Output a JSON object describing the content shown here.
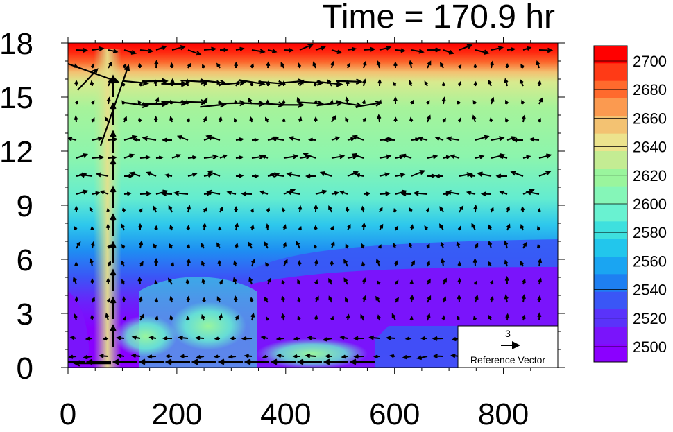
{
  "title": "Time = 170.9 hr",
  "chart_data": {
    "type": "heatmap",
    "x_ticks": [
      0,
      200,
      400,
      600,
      800
    ],
    "y_ticks": [
      0,
      3,
      6,
      9,
      12,
      15,
      18
    ],
    "xlim": [
      0,
      900
    ],
    "ylim": [
      0,
      18
    ],
    "field_levels": [
      2500,
      2520,
      2540,
      2560,
      2580,
      2600,
      2620,
      2640,
      2660,
      2680,
      2700
    ],
    "colorbar_labels": [
      "2700",
      "2680",
      "2660",
      "2640",
      "2620",
      "2600",
      "2580",
      "2560",
      "2540",
      "2520",
      "2500"
    ],
    "colorbar_colors": [
      "#ff0000",
      "#ff3a16",
      "#ff6a2d",
      "#fb9a50",
      "#f3c272",
      "#ece38d",
      "#c4ec93",
      "#9af59d",
      "#85f6b8",
      "#69f2d1",
      "#3ee0de",
      "#22c6ec",
      "#1aa5f2",
      "#1e7ff2",
      "#3a56f6",
      "#5a33fa",
      "#7a14fb",
      "#8b00ff"
    ],
    "reference_vector": {
      "magnitude": "3",
      "label": "Reference Vector"
    },
    "vector_field_summary": "strong eastward-pointing wind jets near heights 15-16 between x 100 and 550; upward stream near x 75; surface westward flow near x 0-550",
    "jets": [
      {
        "name": "upper jet",
        "y": 15.8,
        "x_start": 100,
        "x_end": 540
      },
      {
        "name": "lower jet",
        "y": 14.6,
        "x_start": 100,
        "x_end": 560
      }
    ]
  }
}
